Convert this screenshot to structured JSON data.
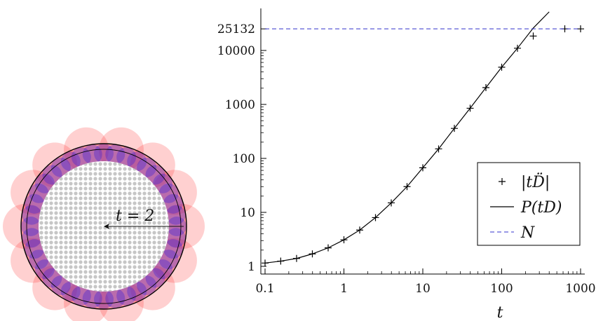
{
  "left_panel": {
    "annotation": "t = 2",
    "colors": {
      "outer_disk": "#ff2a2a",
      "band": "#3a1fd6",
      "inner_dots": "#b8b8b8",
      "boundary": "#000000"
    }
  },
  "chart_data": {
    "type": "line",
    "xscale": "log",
    "yscale": "log",
    "xlim": [
      0.1,
      1000
    ],
    "ylim": [
      0.9,
      50000
    ],
    "xlabel": "t",
    "ylabel": "",
    "x_ticks": [
      0.1,
      1,
      10,
      100,
      1000
    ],
    "x_tick_labels": [
      "0.1",
      "1",
      "10",
      "100",
      "1000"
    ],
    "y_ticks": [
      1,
      10,
      100,
      1000,
      10000,
      25132
    ],
    "y_tick_labels": [
      "1",
      "10",
      "100",
      "1000",
      "10000",
      "25132"
    ],
    "legend_placement": "lower-right",
    "series": [
      {
        "name": "|tD̈|",
        "style": "markers-plus",
        "color": "#000000",
        "x": [
          0.1,
          0.158,
          0.251,
          0.398,
          0.631,
          1,
          1.585,
          2.512,
          3.981,
          6.31,
          10,
          15.85,
          25.12,
          39.81,
          63.1,
          100,
          158.5,
          251.2,
          631,
          1000
        ],
        "y": [
          1.15,
          1.25,
          1.4,
          1.7,
          2.2,
          3.1,
          4.7,
          8,
          15,
          30,
          67,
          150,
          360,
          850,
          2050,
          4900,
          11000,
          18500,
          25132,
          25132
        ]
      },
      {
        "name": "P(tD)",
        "style": "solid",
        "color": "#000000",
        "x": [
          0.1,
          0.158,
          0.251,
          0.398,
          0.631,
          1,
          1.585,
          2.512,
          3.981,
          6.31,
          10,
          15.85,
          25.12,
          39.81,
          63.1,
          100,
          158.5,
          251.2,
          400
        ],
        "y": [
          1.15,
          1.25,
          1.4,
          1.7,
          2.2,
          3.1,
          4.7,
          8,
          15,
          30,
          67,
          150,
          360,
          850,
          2050,
          4900,
          11000,
          26000,
          52000
        ]
      },
      {
        "name": "N",
        "style": "dashed",
        "color": "#3333cc",
        "x": [
          0.1,
          1000
        ],
        "y": [
          25132,
          25132
        ]
      }
    ]
  }
}
